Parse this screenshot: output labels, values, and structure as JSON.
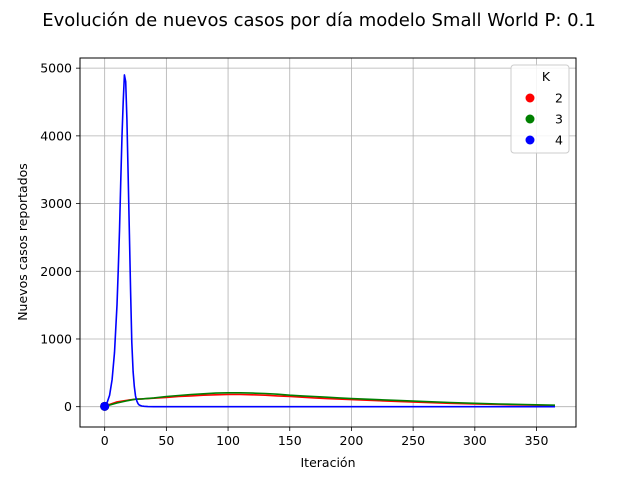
{
  "chart_data": {
    "type": "line",
    "title": "Evolución de nuevos casos por día modelo Small World P: 0.1",
    "xlabel": "Iteración",
    "ylabel": "Nuevos casos reportados",
    "xlim": [
      -20,
      382
    ],
    "ylim": [
      -300,
      5150
    ],
    "xticks": [
      0,
      50,
      100,
      150,
      200,
      250,
      300,
      350
    ],
    "yticks": [
      0,
      1000,
      2000,
      3000,
      4000,
      5000
    ],
    "grid": true,
    "legend": {
      "title": "K",
      "placement": "top-right"
    },
    "series": [
      {
        "name": "2",
        "color": "#ff0000",
        "x": [
          0,
          5,
          10,
          15,
          20,
          25,
          30,
          40,
          50,
          60,
          70,
          80,
          90,
          100,
          110,
          120,
          130,
          140,
          150,
          160,
          170,
          180,
          190,
          200,
          220,
          240,
          260,
          280,
          300,
          320,
          340,
          365
        ],
        "values": [
          5,
          40,
          70,
          85,
          100,
          110,
          115,
          125,
          135,
          150,
          160,
          170,
          175,
          180,
          180,
          175,
          170,
          160,
          150,
          140,
          130,
          120,
          112,
          105,
          90,
          75,
          62,
          50,
          40,
          32,
          25,
          18
        ]
      },
      {
        "name": "3",
        "color": "#008000",
        "x": [
          0,
          5,
          10,
          15,
          20,
          25,
          30,
          40,
          50,
          60,
          70,
          80,
          90,
          100,
          110,
          120,
          130,
          140,
          150,
          160,
          170,
          180,
          190,
          200,
          220,
          240,
          260,
          280,
          300,
          320,
          340,
          365
        ],
        "values": [
          5,
          30,
          55,
          75,
          95,
          110,
          115,
          130,
          150,
          165,
          180,
          190,
          200,
          205,
          205,
          200,
          195,
          185,
          170,
          160,
          150,
          140,
          130,
          120,
          105,
          90,
          75,
          62,
          50,
          40,
          32,
          22
        ]
      },
      {
        "name": "4",
        "color": "#0000ff",
        "x": [
          0,
          2,
          4,
          6,
          8,
          10,
          11,
          12,
          13,
          14,
          15,
          16,
          17,
          18,
          19,
          20,
          21,
          22,
          23,
          24,
          25,
          26,
          27,
          28,
          30,
          32,
          35,
          40,
          50,
          100,
          200,
          300,
          365
        ],
        "values": [
          5,
          60,
          170,
          400,
          800,
          1500,
          2000,
          2600,
          3300,
          4000,
          4500,
          4900,
          4800,
          4250,
          3450,
          2550,
          1700,
          950,
          520,
          300,
          160,
          85,
          45,
          25,
          10,
          5,
          2,
          0,
          0,
          0,
          0,
          0,
          0
        ]
      }
    ]
  }
}
